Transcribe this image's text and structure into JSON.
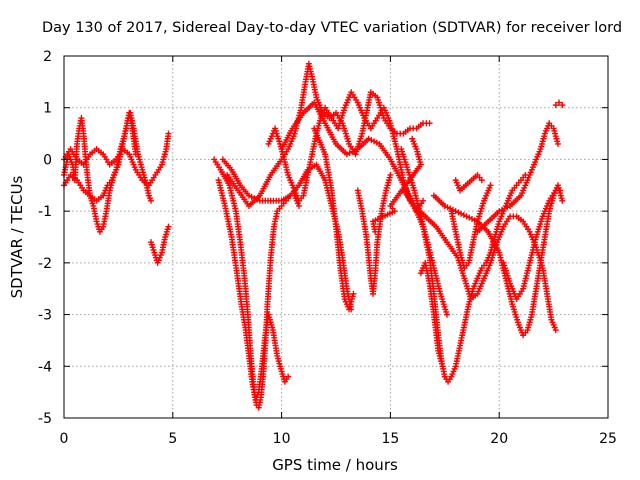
{
  "chart_data": {
    "type": "scatter",
    "title": "Day 130 of 2017, Sidereal Day-to-day VTEC variation (SDTVAR) for receiver lord",
    "xlabel": "GPS time / hours",
    "ylabel": "SDTVAR / TECUs",
    "xlim": [
      0,
      25
    ],
    "ylim": [
      -5,
      2
    ],
    "xticks": [
      "0",
      "5",
      "10",
      "15",
      "20",
      "25"
    ],
    "yticks": [
      "2",
      "1",
      "0",
      "-1",
      "-2",
      "-3",
      "-4",
      "-5"
    ],
    "grid": true,
    "legend": "none",
    "marker": "plus",
    "color": "#ff0000",
    "tracks": [
      [
        [
          0.0,
          -0.3
        ],
        [
          0.2,
          0.1
        ],
        [
          0.4,
          -0.1
        ],
        [
          0.5,
          -0.4
        ],
        [
          0.6,
          0.3
        ],
        [
          0.7,
          0.6
        ],
        [
          0.8,
          0.8
        ],
        [
          0.9,
          0.5
        ],
        [
          1.0,
          0.0
        ],
        [
          1.1,
          -0.4
        ],
        [
          1.2,
          -0.7
        ],
        [
          1.35,
          -0.9
        ],
        [
          1.5,
          -1.2
        ],
        [
          1.65,
          -1.4
        ],
        [
          1.8,
          -1.3
        ],
        [
          1.95,
          -1.0
        ],
        [
          2.1,
          -0.6
        ],
        [
          2.3,
          -0.3
        ],
        [
          2.5,
          -0.1
        ],
        [
          2.6,
          0.1
        ],
        [
          2.7,
          0.3
        ],
        [
          2.8,
          0.5
        ],
        [
          2.9,
          0.7
        ],
        [
          3.0,
          0.9
        ],
        [
          3.1,
          0.7
        ],
        [
          3.2,
          0.4
        ],
        [
          3.3,
          0.1
        ]
      ],
      [
        [
          0.0,
          -0.5
        ],
        [
          0.3,
          -0.3
        ],
        [
          0.6,
          -0.4
        ],
        [
          0.9,
          -0.6
        ],
        [
          1.2,
          -0.7
        ],
        [
          1.5,
          -0.8
        ],
        [
          1.8,
          -0.7
        ],
        [
          2.0,
          -0.5
        ],
        [
          2.2,
          -0.4
        ],
        [
          2.4,
          -0.2
        ],
        [
          2.6,
          0.2
        ],
        [
          2.8,
          0.5
        ],
        [
          2.95,
          0.8
        ],
        [
          3.05,
          0.9
        ],
        [
          3.2,
          0.6
        ],
        [
          3.4,
          0.1
        ],
        [
          3.6,
          -0.2
        ],
        [
          3.8,
          -0.5
        ],
        [
          3.9,
          -0.7
        ],
        [
          4.0,
          -0.8
        ]
      ],
      [
        [
          0.0,
          0.0
        ],
        [
          0.3,
          0.2
        ],
        [
          0.6,
          0.0
        ],
        [
          0.9,
          -0.1
        ],
        [
          1.2,
          0.1
        ],
        [
          1.5,
          0.2
        ],
        [
          1.8,
          0.1
        ],
        [
          2.1,
          -0.1
        ],
        [
          2.4,
          0.0
        ],
        [
          2.7,
          0.2
        ],
        [
          3.0,
          0.1
        ],
        [
          3.3,
          -0.2
        ],
        [
          3.6,
          -0.4
        ],
        [
          3.9,
          -0.5
        ],
        [
          4.2,
          -0.3
        ],
        [
          4.5,
          -0.1
        ],
        [
          4.7,
          0.2
        ],
        [
          4.8,
          0.5
        ]
      ],
      [
        [
          4.0,
          -1.6
        ],
        [
          4.15,
          -1.8
        ],
        [
          4.3,
          -2.0
        ],
        [
          4.5,
          -1.8
        ],
        [
          4.65,
          -1.5
        ],
        [
          4.8,
          -1.3
        ]
      ],
      [
        [
          6.9,
          0.0
        ],
        [
          7.2,
          -0.2
        ],
        [
          7.6,
          -0.5
        ],
        [
          7.9,
          -1.0
        ],
        [
          8.1,
          -1.6
        ],
        [
          8.3,
          -2.3
        ],
        [
          8.45,
          -3.0
        ],
        [
          8.55,
          -3.6
        ],
        [
          8.65,
          -4.1
        ],
        [
          8.75,
          -4.5
        ],
        [
          8.85,
          -4.75
        ],
        [
          8.95,
          -4.8
        ],
        [
          9.05,
          -4.6
        ],
        [
          9.15,
          -4.2
        ],
        [
          9.25,
          -3.6
        ],
        [
          9.35,
          -2.8
        ],
        [
          9.5,
          -1.9
        ],
        [
          9.65,
          -1.3
        ],
        [
          9.8,
          -1.0
        ],
        [
          10.0,
          -0.9
        ],
        [
          10.2,
          -0.8
        ],
        [
          10.4,
          -0.7
        ],
        [
          10.6,
          -0.7
        ],
        [
          10.8,
          -0.9
        ]
      ],
      [
        [
          7.1,
          -0.4
        ],
        [
          7.4,
          -0.9
        ],
        [
          7.7,
          -1.5
        ],
        [
          7.95,
          -2.2
        ],
        [
          8.15,
          -2.8
        ],
        [
          8.35,
          -3.3
        ],
        [
          8.5,
          -3.8
        ],
        [
          8.65,
          -4.3
        ],
        [
          8.8,
          -4.65
        ],
        [
          8.95,
          -4.5
        ],
        [
          9.1,
          -4.0
        ],
        [
          9.25,
          -3.4
        ],
        [
          9.4,
          -3.0
        ],
        [
          9.6,
          -3.3
        ],
        [
          9.8,
          -3.8
        ],
        [
          10.0,
          -4.1
        ],
        [
          10.15,
          -4.3
        ],
        [
          10.3,
          -4.2
        ]
      ],
      [
        [
          7.3,
          0.0
        ],
        [
          7.7,
          -0.2
        ],
        [
          8.1,
          -0.5
        ],
        [
          8.5,
          -0.7
        ],
        [
          9.0,
          -0.8
        ],
        [
          9.5,
          -0.8
        ],
        [
          10.0,
          -0.8
        ],
        [
          10.4,
          -0.7
        ],
        [
          10.8,
          -0.5
        ],
        [
          11.2,
          -0.2
        ],
        [
          11.6,
          -0.1
        ],
        [
          12.0,
          -0.4
        ],
        [
          12.3,
          -0.9
        ],
        [
          12.6,
          -1.4
        ],
        [
          12.8,
          -1.9
        ],
        [
          13.0,
          -2.5
        ],
        [
          13.2,
          -2.9
        ]
      ],
      [
        [
          7.5,
          -0.3
        ],
        [
          8.0,
          -0.6
        ],
        [
          8.5,
          -0.9
        ],
        [
          9.0,
          -0.7
        ],
        [
          9.5,
          -0.3
        ],
        [
          10.0,
          0.0
        ],
        [
          10.3,
          0.2
        ],
        [
          10.6,
          0.5
        ],
        [
          10.9,
          1.0
        ],
        [
          11.1,
          1.5
        ],
        [
          11.25,
          1.85
        ],
        [
          11.4,
          1.6
        ],
        [
          11.6,
          1.2
        ],
        [
          11.9,
          0.9
        ],
        [
          12.2,
          0.8
        ],
        [
          12.5,
          0.9
        ],
        [
          12.8,
          0.7
        ],
        [
          13.1,
          0.3
        ],
        [
          13.4,
          0.1
        ],
        [
          13.7,
          0.5
        ],
        [
          13.9,
          0.9
        ],
        [
          14.1,
          1.3
        ],
        [
          14.4,
          1.2
        ],
        [
          14.7,
          0.8
        ],
        [
          15.0,
          0.6
        ],
        [
          15.3,
          0.5
        ],
        [
          15.6,
          0.5
        ],
        [
          15.9,
          0.6
        ],
        [
          16.2,
          0.6
        ],
        [
          16.5,
          0.7
        ],
        [
          16.8,
          0.7
        ]
      ],
      [
        [
          9.4,
          0.3
        ],
        [
          9.7,
          0.6
        ],
        [
          10.0,
          0.2
        ],
        [
          10.3,
          -0.3
        ],
        [
          10.6,
          -0.6
        ],
        [
          10.8,
          -0.8
        ],
        [
          11.0,
          -0.7
        ],
        [
          11.2,
          -0.3
        ],
        [
          11.4,
          0.1
        ],
        [
          11.6,
          0.5
        ],
        [
          11.8,
          0.8
        ],
        [
          12.0,
          1.0
        ],
        [
          12.3,
          0.8
        ],
        [
          12.6,
          0.6
        ],
        [
          12.9,
          1.0
        ],
        [
          13.2,
          1.3
        ],
        [
          13.5,
          1.1
        ],
        [
          13.8,
          0.8
        ],
        [
          14.1,
          0.6
        ],
        [
          14.4,
          0.8
        ],
        [
          14.7,
          1.0
        ],
        [
          15.0,
          0.7
        ],
        [
          15.3,
          0.2
        ],
        [
          15.6,
          -0.4
        ],
        [
          15.9,
          -0.8
        ],
        [
          16.2,
          -1.0
        ],
        [
          16.5,
          -0.8
        ]
      ],
      [
        [
          10.0,
          0.2
        ],
        [
          10.5,
          0.6
        ],
        [
          11.0,
          0.9
        ],
        [
          11.5,
          1.1
        ],
        [
          12.0,
          0.7
        ],
        [
          12.5,
          0.3
        ],
        [
          13.0,
          0.1
        ],
        [
          13.5,
          0.2
        ],
        [
          14.0,
          0.4
        ],
        [
          14.5,
          0.3
        ],
        [
          15.0,
          0.0
        ],
        [
          15.5,
          -0.4
        ],
        [
          16.0,
          -0.8
        ],
        [
          16.5,
          -1.3
        ],
        [
          16.8,
          -1.9
        ],
        [
          17.0,
          -2.6
        ],
        [
          17.2,
          -3.4
        ],
        [
          17.35,
          -3.9
        ],
        [
          17.5,
          -4.2
        ],
        [
          17.65,
          -4.3
        ],
        [
          17.8,
          -4.2
        ],
        [
          18.0,
          -4.0
        ],
        [
          18.2,
          -3.6
        ],
        [
          18.4,
          -3.2
        ],
        [
          18.6,
          -2.8
        ],
        [
          18.8,
          -2.5
        ],
        [
          19.0,
          -2.3
        ],
        [
          19.2,
          -2.1
        ],
        [
          19.4,
          -2.0
        ],
        [
          19.6,
          -1.8
        ],
        [
          19.8,
          -1.5
        ],
        [
          20.0,
          -1.2
        ],
        [
          20.2,
          -1.0
        ],
        [
          20.4,
          -0.8
        ],
        [
          20.6,
          -0.6
        ],
        [
          20.8,
          -0.5
        ],
        [
          21.0,
          -0.4
        ],
        [
          21.2,
          -0.3
        ]
      ],
      [
        [
          11.5,
          0.6
        ],
        [
          12.0,
          0.1
        ],
        [
          12.3,
          -0.6
        ],
        [
          12.5,
          -1.3
        ],
        [
          12.7,
          -2.1
        ],
        [
          12.9,
          -2.7
        ],
        [
          13.1,
          -2.9
        ],
        [
          13.3,
          -2.6
        ]
      ],
      [
        [
          13.5,
          -0.6
        ],
        [
          13.7,
          -1.0
        ],
        [
          13.9,
          -1.5
        ],
        [
          14.0,
          -1.9
        ],
        [
          14.1,
          -2.3
        ],
        [
          14.2,
          -2.6
        ],
        [
          14.3,
          -2.2
        ],
        [
          14.4,
          -1.6
        ],
        [
          14.6,
          -1.0
        ],
        [
          14.8,
          -0.6
        ],
        [
          15.0,
          -0.3
        ]
      ],
      [
        [
          15.5,
          0.2
        ],
        [
          15.8,
          -0.2
        ],
        [
          16.1,
          -0.6
        ],
        [
          16.4,
          -1.1
        ],
        [
          16.7,
          -1.6
        ],
        [
          17.0,
          -2.1
        ],
        [
          17.3,
          -2.6
        ],
        [
          17.6,
          -3.0
        ]
      ],
      [
        [
          16.4,
          -2.2
        ],
        [
          16.6,
          -2.0
        ],
        [
          16.8,
          -2.4
        ],
        [
          17.0,
          -3.0
        ],
        [
          17.2,
          -3.7
        ],
        [
          17.4,
          -4.0
        ]
      ],
      [
        [
          15.6,
          -0.6
        ],
        [
          16.1,
          -0.9
        ],
        [
          16.6,
          -1.1
        ],
        [
          17.1,
          -1.3
        ],
        [
          17.6,
          -1.6
        ],
        [
          18.1,
          -1.9
        ],
        [
          18.4,
          -2.3
        ],
        [
          18.7,
          -2.7
        ],
        [
          19.0,
          -2.6
        ],
        [
          19.3,
          -2.3
        ],
        [
          19.6,
          -2.0
        ],
        [
          19.9,
          -1.6
        ],
        [
          20.2,
          -1.3
        ],
        [
          20.5,
          -1.1
        ],
        [
          20.8,
          -1.1
        ],
        [
          21.1,
          -1.2
        ],
        [
          21.4,
          -1.4
        ],
        [
          21.7,
          -1.7
        ],
        [
          22.0,
          -2.1
        ],
        [
          22.2,
          -2.6
        ],
        [
          22.4,
          -3.1
        ],
        [
          22.6,
          -3.3
        ]
      ],
      [
        [
          17.8,
          -1.0
        ],
        [
          18.0,
          -1.4
        ],
        [
          18.2,
          -1.8
        ],
        [
          18.4,
          -2.1
        ],
        [
          18.6,
          -2.0
        ],
        [
          18.8,
          -1.6
        ],
        [
          19.0,
          -1.2
        ],
        [
          19.3,
          -0.8
        ],
        [
          19.6,
          -0.5
        ]
      ],
      [
        [
          17.0,
          -0.7
        ],
        [
          17.5,
          -0.9
        ],
        [
          18.0,
          -1.0
        ],
        [
          18.5,
          -1.1
        ],
        [
          19.0,
          -1.2
        ],
        [
          19.5,
          -1.4
        ],
        [
          20.0,
          -1.8
        ],
        [
          20.3,
          -2.3
        ],
        [
          20.6,
          -2.8
        ],
        [
          20.9,
          -3.2
        ],
        [
          21.1,
          -3.4
        ],
        [
          21.3,
          -3.3
        ],
        [
          21.5,
          -3.0
        ],
        [
          21.7,
          -2.5
        ],
        [
          21.9,
          -2.0
        ],
        [
          22.1,
          -1.5
        ],
        [
          22.3,
          -1.0
        ],
        [
          22.5,
          -0.7
        ],
        [
          22.7,
          -0.5
        ],
        [
          22.9,
          -0.8
        ]
      ],
      [
        [
          19.0,
          -1.4
        ],
        [
          19.5,
          -1.2
        ],
        [
          20.0,
          -1.0
        ],
        [
          20.5,
          -0.9
        ],
        [
          21.0,
          -0.7
        ],
        [
          21.3,
          -0.4
        ],
        [
          21.6,
          -0.1
        ],
        [
          21.9,
          0.2
        ],
        [
          22.1,
          0.5
        ],
        [
          22.3,
          0.7
        ],
        [
          22.5,
          0.6
        ],
        [
          22.7,
          0.3
        ]
      ],
      [
        [
          20.2,
          -2.0
        ],
        [
          20.5,
          -2.4
        ],
        [
          20.8,
          -2.7
        ],
        [
          21.1,
          -2.5
        ],
        [
          21.4,
          -2.0
        ],
        [
          21.7,
          -1.5
        ],
        [
          22.0,
          -1.1
        ],
        [
          22.3,
          -0.8
        ],
        [
          22.6,
          -0.6
        ],
        [
          22.8,
          -0.6
        ]
      ],
      [
        [
          22.6,
          1.05
        ],
        [
          22.75,
          1.1
        ],
        [
          22.9,
          1.05
        ]
      ],
      [
        [
          18.0,
          -0.4
        ],
        [
          18.1,
          -0.5
        ],
        [
          18.2,
          -0.6
        ],
        [
          19.0,
          -0.3
        ],
        [
          19.2,
          -0.4
        ]
      ],
      [
        [
          16.0,
          0.4
        ],
        [
          16.2,
          0.2
        ],
        [
          16.4,
          -0.1
        ],
        [
          15.0,
          -0.9
        ],
        [
          15.2,
          -1.0
        ],
        [
          14.2,
          -1.2
        ],
        [
          14.3,
          -1.4
        ]
      ]
    ]
  }
}
